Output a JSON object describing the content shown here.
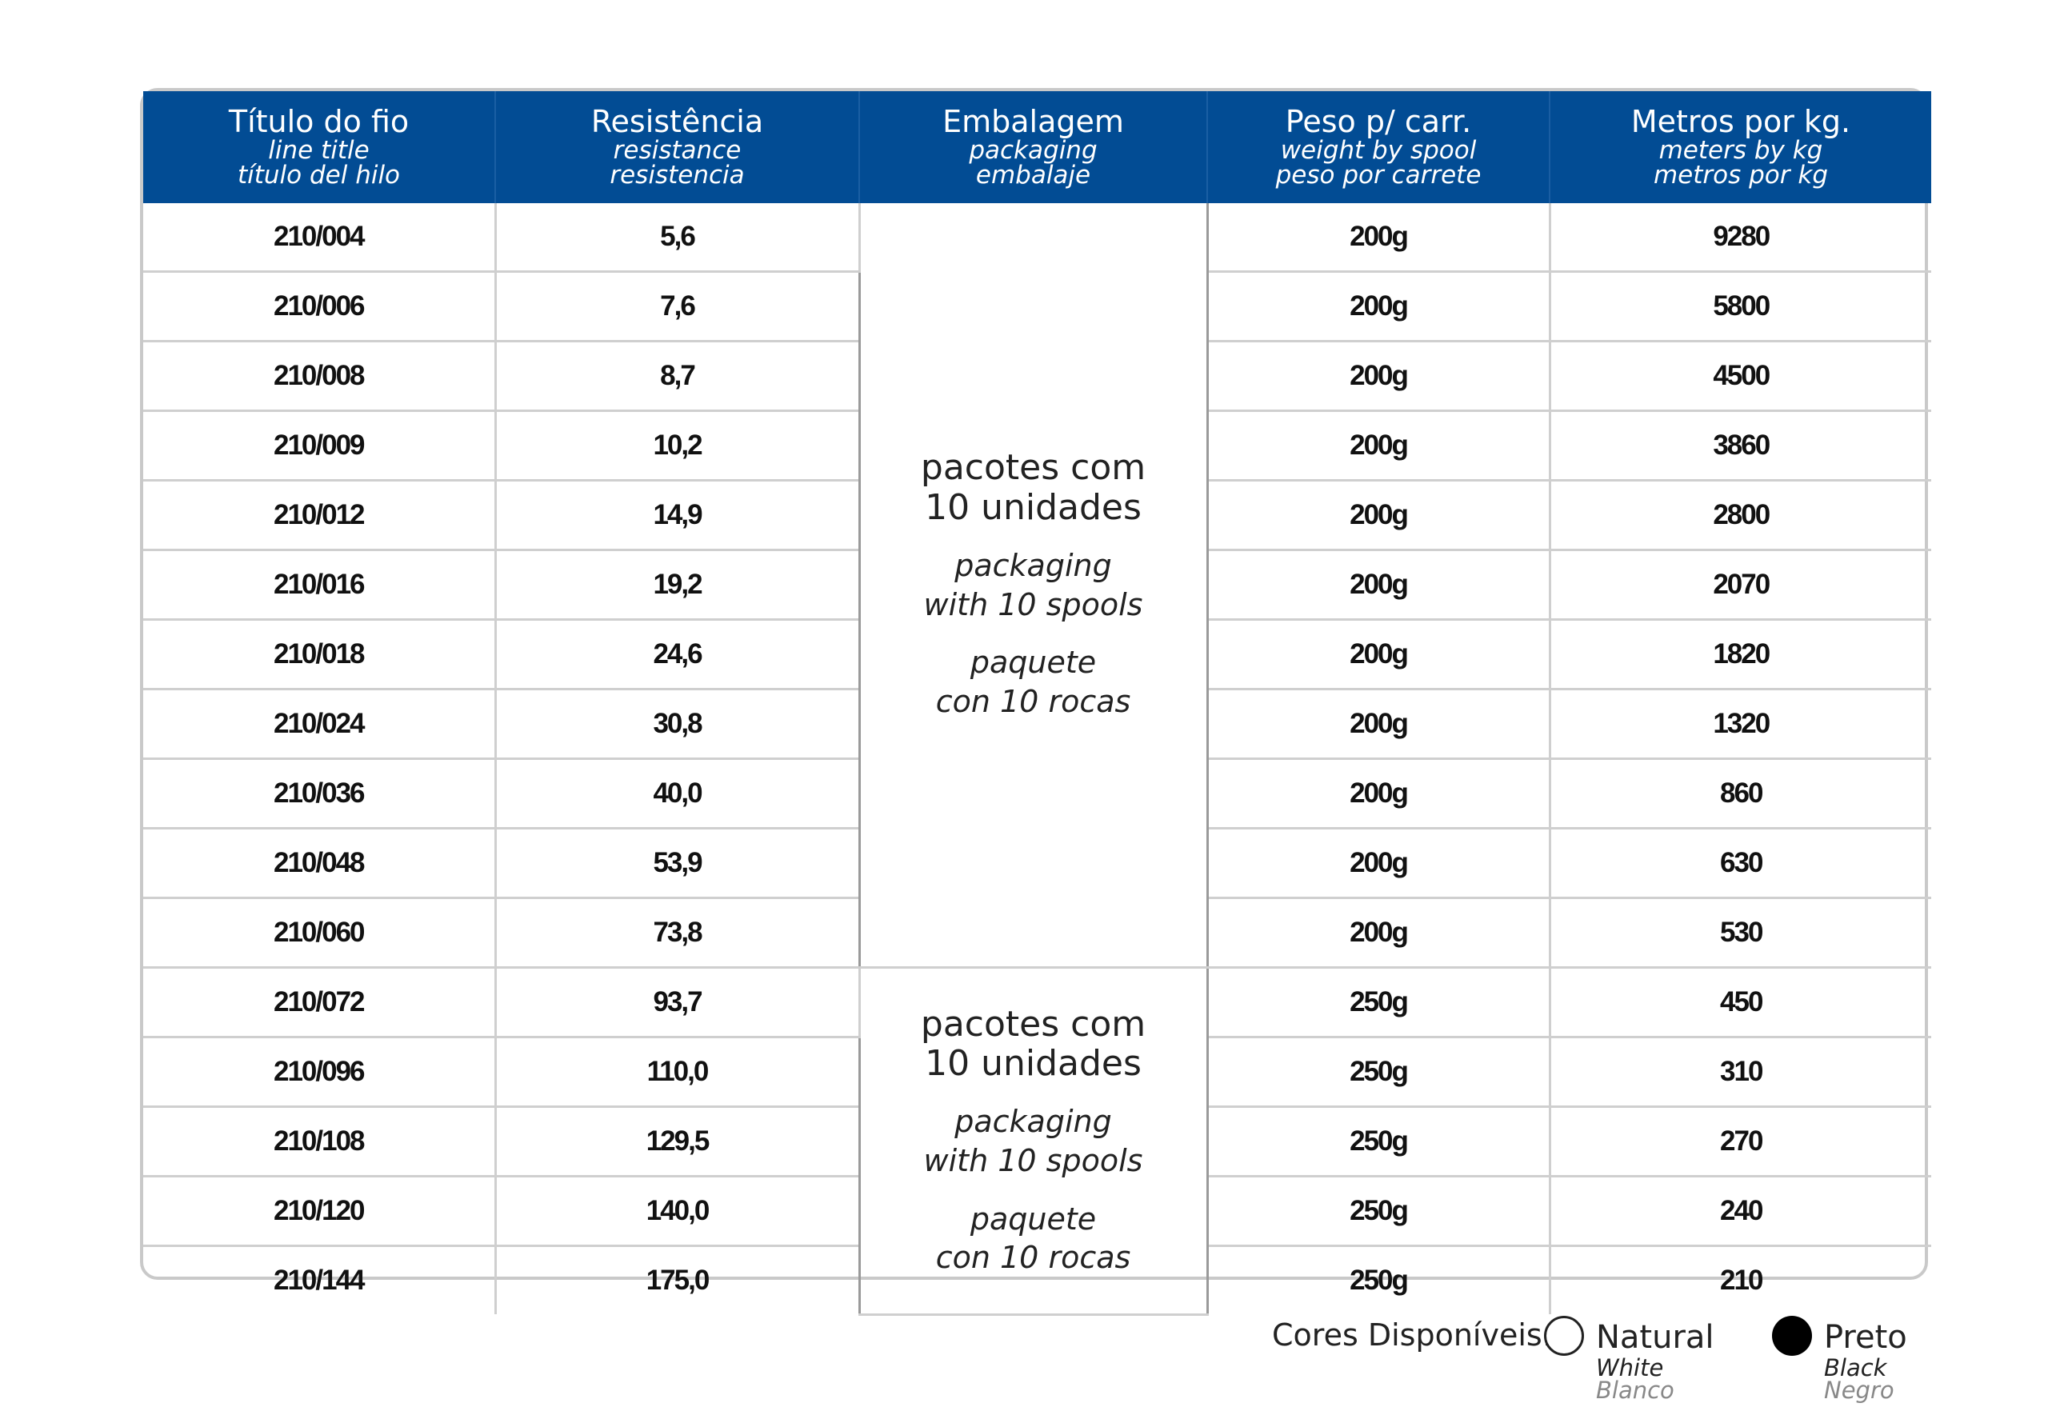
{
  "header": {
    "columns": [
      {
        "main": "Título do fio",
        "en": "line title",
        "es": "título del hilo"
      },
      {
        "main": "Resistência",
        "en": "resistance",
        "es": "resistencia"
      },
      {
        "main": "Embalagem",
        "en": "packaging",
        "es": "embalaje"
      },
      {
        "main": "Peso p/ carr.",
        "en": "weight by spool",
        "es": "peso por carrete"
      },
      {
        "main": "Metros por kg.",
        "en": "meters by kg",
        "es": "metros por kg"
      }
    ]
  },
  "packaging_groups": [
    {
      "pt_line1": "pacotes com",
      "pt_line2": "10 unidades",
      "en_line1": "packaging",
      "en_line2": "with 10 spools",
      "es_line1": "paquete",
      "es_line2": "con 10 rocas"
    },
    {
      "pt_line1": "pacotes com",
      "pt_line2": "10 unidades",
      "en_line1": "packaging",
      "en_line2": "with 10 spools",
      "es_line1": "paquete",
      "es_line2": "con 10 rocas"
    }
  ],
  "rows": [
    {
      "title": "210/004",
      "resistance": "5,6",
      "weight": "200g",
      "meters": "9280"
    },
    {
      "title": "210/006",
      "resistance": "7,6",
      "weight": "200g",
      "meters": "5800"
    },
    {
      "title": "210/008",
      "resistance": "8,7",
      "weight": "200g",
      "meters": "4500"
    },
    {
      "title": "210/009",
      "resistance": "10,2",
      "weight": "200g",
      "meters": "3860"
    },
    {
      "title": "210/012",
      "resistance": "14,9",
      "weight": "200g",
      "meters": "2800"
    },
    {
      "title": "210/016",
      "resistance": "19,2",
      "weight": "200g",
      "meters": "2070"
    },
    {
      "title": "210/018",
      "resistance": "24,6",
      "weight": "200g",
      "meters": "1820"
    },
    {
      "title": "210/024",
      "resistance": "30,8",
      "weight": "200g",
      "meters": "1320"
    },
    {
      "title": "210/036",
      "resistance": "40,0",
      "weight": "200g",
      "meters": "860"
    },
    {
      "title": "210/048",
      "resistance": "53,9",
      "weight": "200g",
      "meters": "630"
    },
    {
      "title": "210/060",
      "resistance": "73,8",
      "weight": "200g",
      "meters": "530"
    },
    {
      "title": "210/072",
      "resistance": "93,7",
      "weight": "250g",
      "meters": "450"
    },
    {
      "title": "210/096",
      "resistance": "110,0",
      "weight": "250g",
      "meters": "310"
    },
    {
      "title": "210/108",
      "resistance": "129,5",
      "weight": "250g",
      "meters": "270"
    },
    {
      "title": "210/120",
      "resistance": "140,0",
      "weight": "250g",
      "meters": "240"
    },
    {
      "title": "210/144",
      "resistance": "175,0",
      "weight": "250g",
      "meters": "210"
    }
  ],
  "colors": {
    "label": "Cores Disponíveis:",
    "items": [
      {
        "name": "Natural",
        "en": "White",
        "es": "Blanco",
        "swatch": "#ffffff"
      },
      {
        "name": "Preto",
        "en": "Black",
        "es": "Negro",
        "swatch": "#000000"
      }
    ]
  },
  "theme": {
    "header_bg": "#024c94",
    "border": "#cfcfcf"
  }
}
